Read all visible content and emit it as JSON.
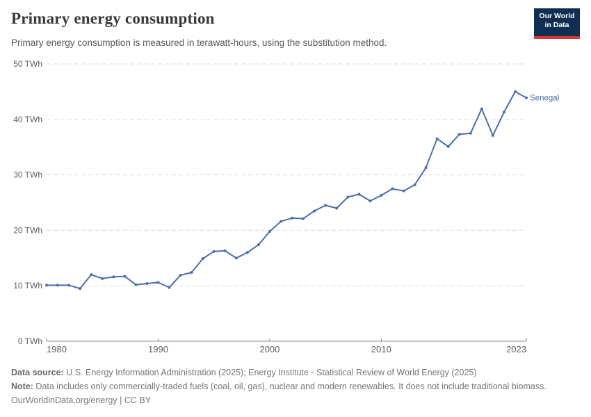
{
  "header": {
    "title": "Primary energy consumption",
    "subtitle": "Primary energy consumption is measured in terawatt-hours, using the substitution method.",
    "logo": {
      "line1": "Our World",
      "line2": "in Data"
    }
  },
  "theme": {
    "line_color": "#4C6EA9",
    "grid_color": "#dbdbdb",
    "axis_color": "#8a8a8a",
    "tick_label_color": "#5e5e5e",
    "logo_bg": "#0F2E52",
    "logo_red": "#D93832",
    "title_color": "#383838"
  },
  "chart_data": {
    "type": "line",
    "title": "Primary energy consumption",
    "entity": "Senegal",
    "unit": "TWh",
    "x": [
      1980,
      1981,
      1982,
      1983,
      1984,
      1985,
      1986,
      1987,
      1988,
      1989,
      1990,
      1991,
      1992,
      1993,
      1994,
      1995,
      1996,
      1997,
      1998,
      1999,
      2000,
      2001,
      2002,
      2003,
      2004,
      2005,
      2006,
      2007,
      2008,
      2009,
      2010,
      2011,
      2012,
      2013,
      2014,
      2015,
      2016,
      2017,
      2018,
      2019,
      2020,
      2021,
      2022,
      2023
    ],
    "values": [
      10.1,
      10.1,
      10.1,
      9.5,
      12.0,
      11.3,
      11.6,
      11.7,
      10.2,
      10.4,
      10.6,
      9.7,
      11.9,
      12.4,
      14.9,
      16.2,
      16.3,
      15.0,
      16.0,
      17.4,
      19.8,
      21.6,
      22.2,
      22.1,
      23.5,
      24.5,
      24.0,
      26.0,
      26.5,
      25.3,
      26.3,
      27.5,
      27.1,
      28.2,
      31.3,
      36.5,
      35.1,
      37.3,
      37.5,
      41.9,
      37.1,
      41.3,
      45.0,
      43.9
    ],
    "xlim": [
      1980,
      2023
    ],
    "ylim": [
      0,
      50
    ],
    "yticks": [
      0,
      10,
      20,
      30,
      40,
      50
    ],
    "ytick_suffix": " TWh",
    "xticks": [
      1980,
      1990,
      2000,
      2010,
      2023
    ],
    "grid": "horizontal-dashed",
    "legend_position": "end-of-line"
  },
  "footer": {
    "data_source_label": "Data source:",
    "data_source_text": " U.S. Energy Information Administration (2025); Energy Institute - Statistical Review of World Energy (2025)",
    "note_label": "Note:",
    "note_text": " Data includes only commercially-traded fuels (coal, oil, gas), nuclear and modern renewables. It does not include traditional biomass.",
    "link": "OurWorldinData.org/energy",
    "separator": " | ",
    "license": "CC BY"
  }
}
